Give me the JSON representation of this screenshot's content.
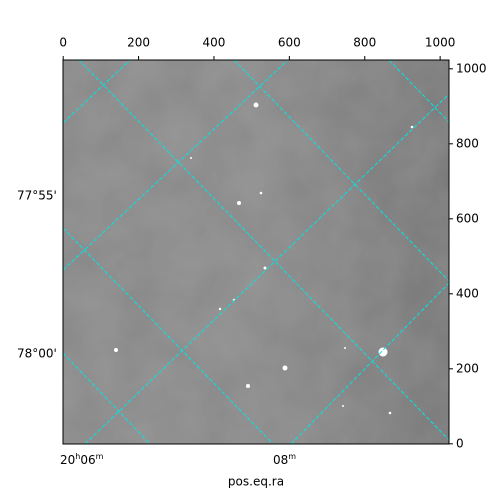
{
  "chart_data": {
    "type": "image",
    "xlabel": "pos.eq.ra",
    "xlim": [
      -0.5,
      1023.5
    ],
    "xticks": [
      0,
      200,
      400,
      600,
      800,
      1000
    ],
    "ylim": [
      -0.5,
      1023.5
    ],
    "yticks": [
      0,
      200,
      400,
      600,
      800,
      1000
    ],
    "dec_ticks": [
      "77°55'",
      "78°00'"
    ],
    "ra_ticks": [
      [
        "20",
        "h",
        "06",
        "m"
      ],
      [
        "08",
        "m"
      ]
    ]
  }
}
